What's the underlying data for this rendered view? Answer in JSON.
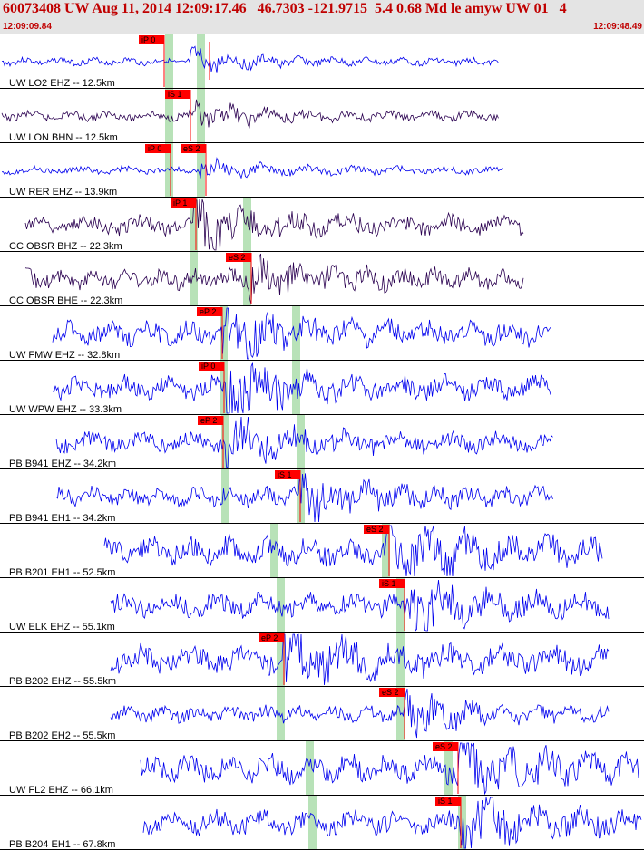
{
  "header": {
    "title": "60073408 UW Aug 11, 2014 12:09:17.46   46.7303 -121.9715  5.4 0.68 Md le amyw UW 01   4",
    "time_start": "12:09:09.84",
    "time_end": "12:09:48.49"
  },
  "colors": {
    "trace_primary": "#0000ee",
    "trace_dark": "#2a0050",
    "pick_flag": "#ff0000",
    "phase_band": "#b8e2b8",
    "header_bg": "#e4e4e4",
    "title_text": "#c00000"
  },
  "traces": [
    {
      "label": "UW LO2 EHZ -- 12.5km",
      "color": "dark_blue",
      "picks": [
        {
          "text": "iP 0"
        },
        {
          "text": ""
        }
      ]
    },
    {
      "label": "UW LON BHN -- 12.5km",
      "color": "dark_purple",
      "picks": [
        {
          "text": "iS 1"
        }
      ]
    },
    {
      "label": "UW RER EHZ -- 13.9km",
      "color": "dark_blue",
      "picks": [
        {
          "text": "iP 0"
        },
        {
          "text": "eS 2"
        }
      ]
    },
    {
      "label": "CC OBSR BHZ -- 22.3km",
      "color": "dark_purple",
      "picks": [
        {
          "text": "iP 1"
        }
      ]
    },
    {
      "label": "CC OBSR BHE -- 22.3km",
      "color": "dark_purple",
      "picks": [
        {
          "text": "eS 2"
        }
      ]
    },
    {
      "label": "UW FMW EHZ -- 32.8km",
      "color": "dark_blue",
      "picks": [
        {
          "text": "eP 2"
        }
      ]
    },
    {
      "label": "UW WPW EHZ -- 33.3km",
      "color": "dark_blue",
      "picks": [
        {
          "text": "iP 0"
        }
      ]
    },
    {
      "label": "PB B941 EHZ -- 34.2km",
      "color": "dark_blue",
      "picks": [
        {
          "text": "eP 2"
        }
      ]
    },
    {
      "label": "PB B941 EH1 -- 34.2km",
      "color": "dark_blue",
      "picks": [
        {
          "text": "iS 1"
        }
      ]
    },
    {
      "label": "PB B201 EH1 -- 52.5km",
      "color": "dark_blue",
      "picks": [
        {
          "text": "eS 2"
        }
      ]
    },
    {
      "label": "UW ELK EHZ -- 55.1km",
      "color": "dark_blue",
      "picks": [
        {
          "text": "iS 1"
        }
      ]
    },
    {
      "label": "PB B202 EHZ -- 55.5km",
      "color": "dark_blue",
      "picks": [
        {
          "text": "eP 2"
        }
      ]
    },
    {
      "label": "PB B202 EH2 -- 55.5km",
      "color": "dark_blue",
      "picks": [
        {
          "text": "eS 2"
        }
      ]
    },
    {
      "label": "UW FL2 EHZ -- 66.1km",
      "color": "dark_blue",
      "picks": [
        {
          "text": "eS 2"
        }
      ]
    },
    {
      "label": "PB B204 EH1 -- 67.8km",
      "color": "dark_blue",
      "picks": [
        {
          "text": "iS 1"
        }
      ]
    }
  ]
}
